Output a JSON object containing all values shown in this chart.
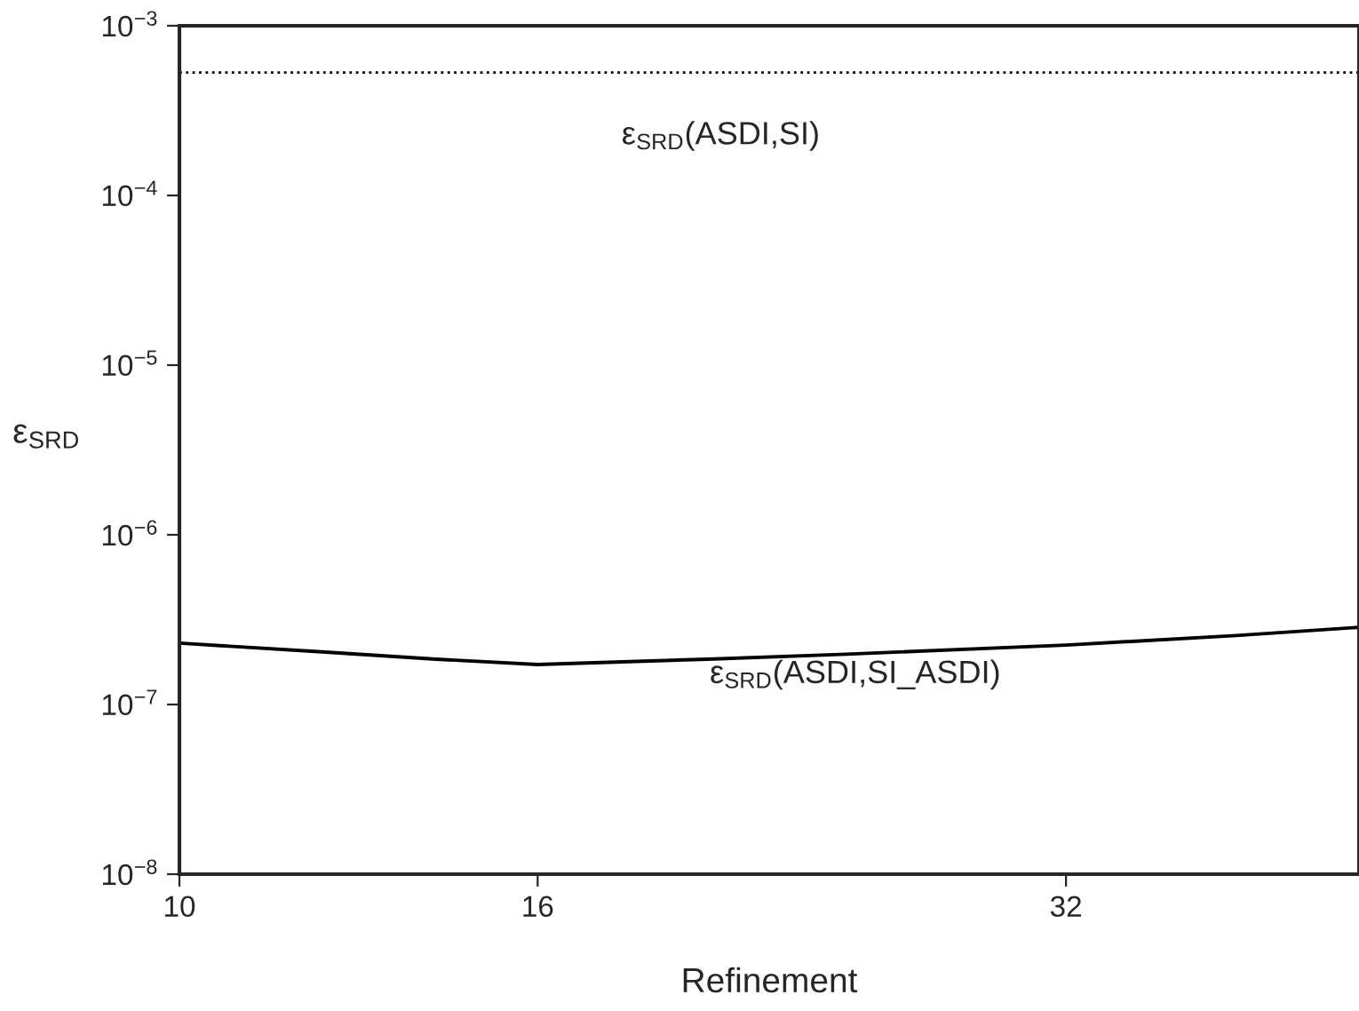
{
  "chart_data": {
    "type": "line",
    "xlabel": "Refinement",
    "ylabel": "ε$_{SRD}$",
    "log": "xy",
    "grid": false,
    "legend": false,
    "marker": "none",
    "xlim": [
      10,
      47
    ],
    "xticks": [
      10,
      16,
      32
    ],
    "ylim": [
      1e-08,
      0.001
    ],
    "yticks": [
      {
        "value": 1e-08,
        "label": "10$^{−8}$"
      },
      {
        "value": 1e-07,
        "label": "10$^{−7}$"
      },
      {
        "value": 1e-06,
        "label": "10$^{−6}$"
      },
      {
        "value": 1e-05,
        "label": "10$^{−5}$"
      },
      {
        "value": 0.0001,
        "label": "10$^{−4}$"
      },
      {
        "value": 0.001,
        "label": "10$^{−3}$"
      }
    ],
    "series": [
      {
        "color": "#000000",
        "line_style": "dotted",
        "x": [
          10,
          47
        ],
        "values": [
          0.00053,
          0.00053
        ]
      },
      {
        "color": "#000000",
        "line_style": "solid",
        "x": [
          10,
          12,
          14,
          16,
          20,
          24,
          32,
          40,
          47
        ],
        "values": [
          2.3e-07,
          2.05e-07,
          1.85e-07,
          1.72e-07,
          1.85e-07,
          1.98e-07,
          2.24e-07,
          2.55e-07,
          2.85e-07
        ]
      }
    ],
    "annotations": [
      "ε$_{SRD}$(ASDI,SI)",
      "ε$_{SRD}$(ASDI,SI_ASDI)"
    ]
  }
}
